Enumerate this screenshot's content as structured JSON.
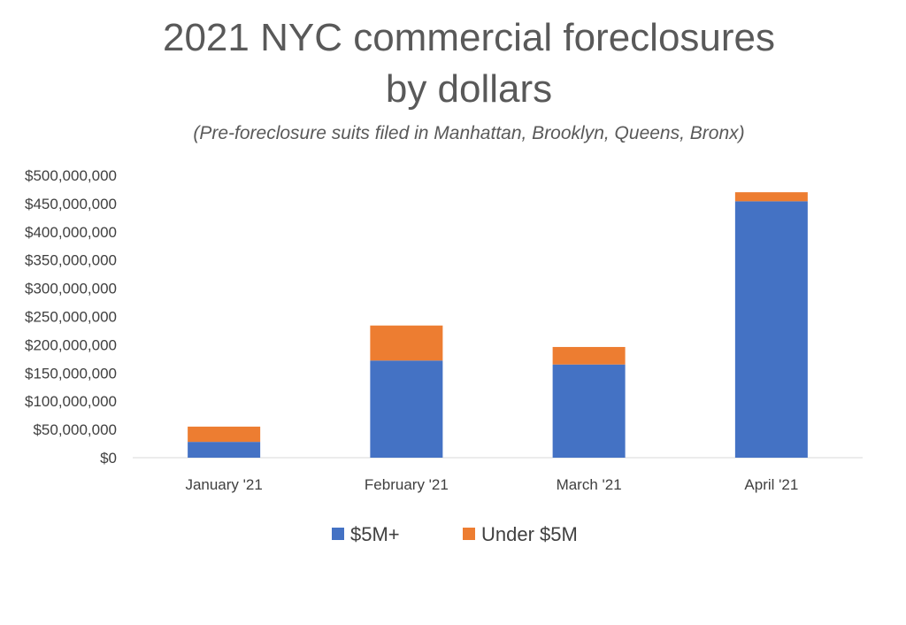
{
  "chart_data": {
    "type": "bar",
    "stacked": true,
    "title_lines": [
      "2021 NYC commercial foreclosures",
      "by dollars"
    ],
    "subtitle": "(Pre-foreclosure suits filed in Manhattan, Brooklyn, Queens, Bronx)",
    "categories": [
      "January '21",
      "February '21",
      "March '21",
      "April '21"
    ],
    "series": [
      {
        "name": "$5M+",
        "color": "#4472C4",
        "values": [
          28000000,
          172000000,
          165000000,
          454000000
        ]
      },
      {
        "name": "Under $5M",
        "color": "#ED7D31",
        "values": [
          27000000,
          62000000,
          31000000,
          16000000
        ]
      }
    ],
    "ylim": [
      0,
      500000000
    ],
    "yticks": [
      "$0",
      "$50,000,000",
      "$100,000,000",
      "$150,000,000",
      "$200,000,000",
      "$250,000,000",
      "$300,000,000",
      "$350,000,000",
      "$400,000,000",
      "$450,000,000",
      "$500,000,000"
    ],
    "xlabel": "",
    "ylabel": "",
    "grid": false,
    "legend_position": "bottom"
  }
}
